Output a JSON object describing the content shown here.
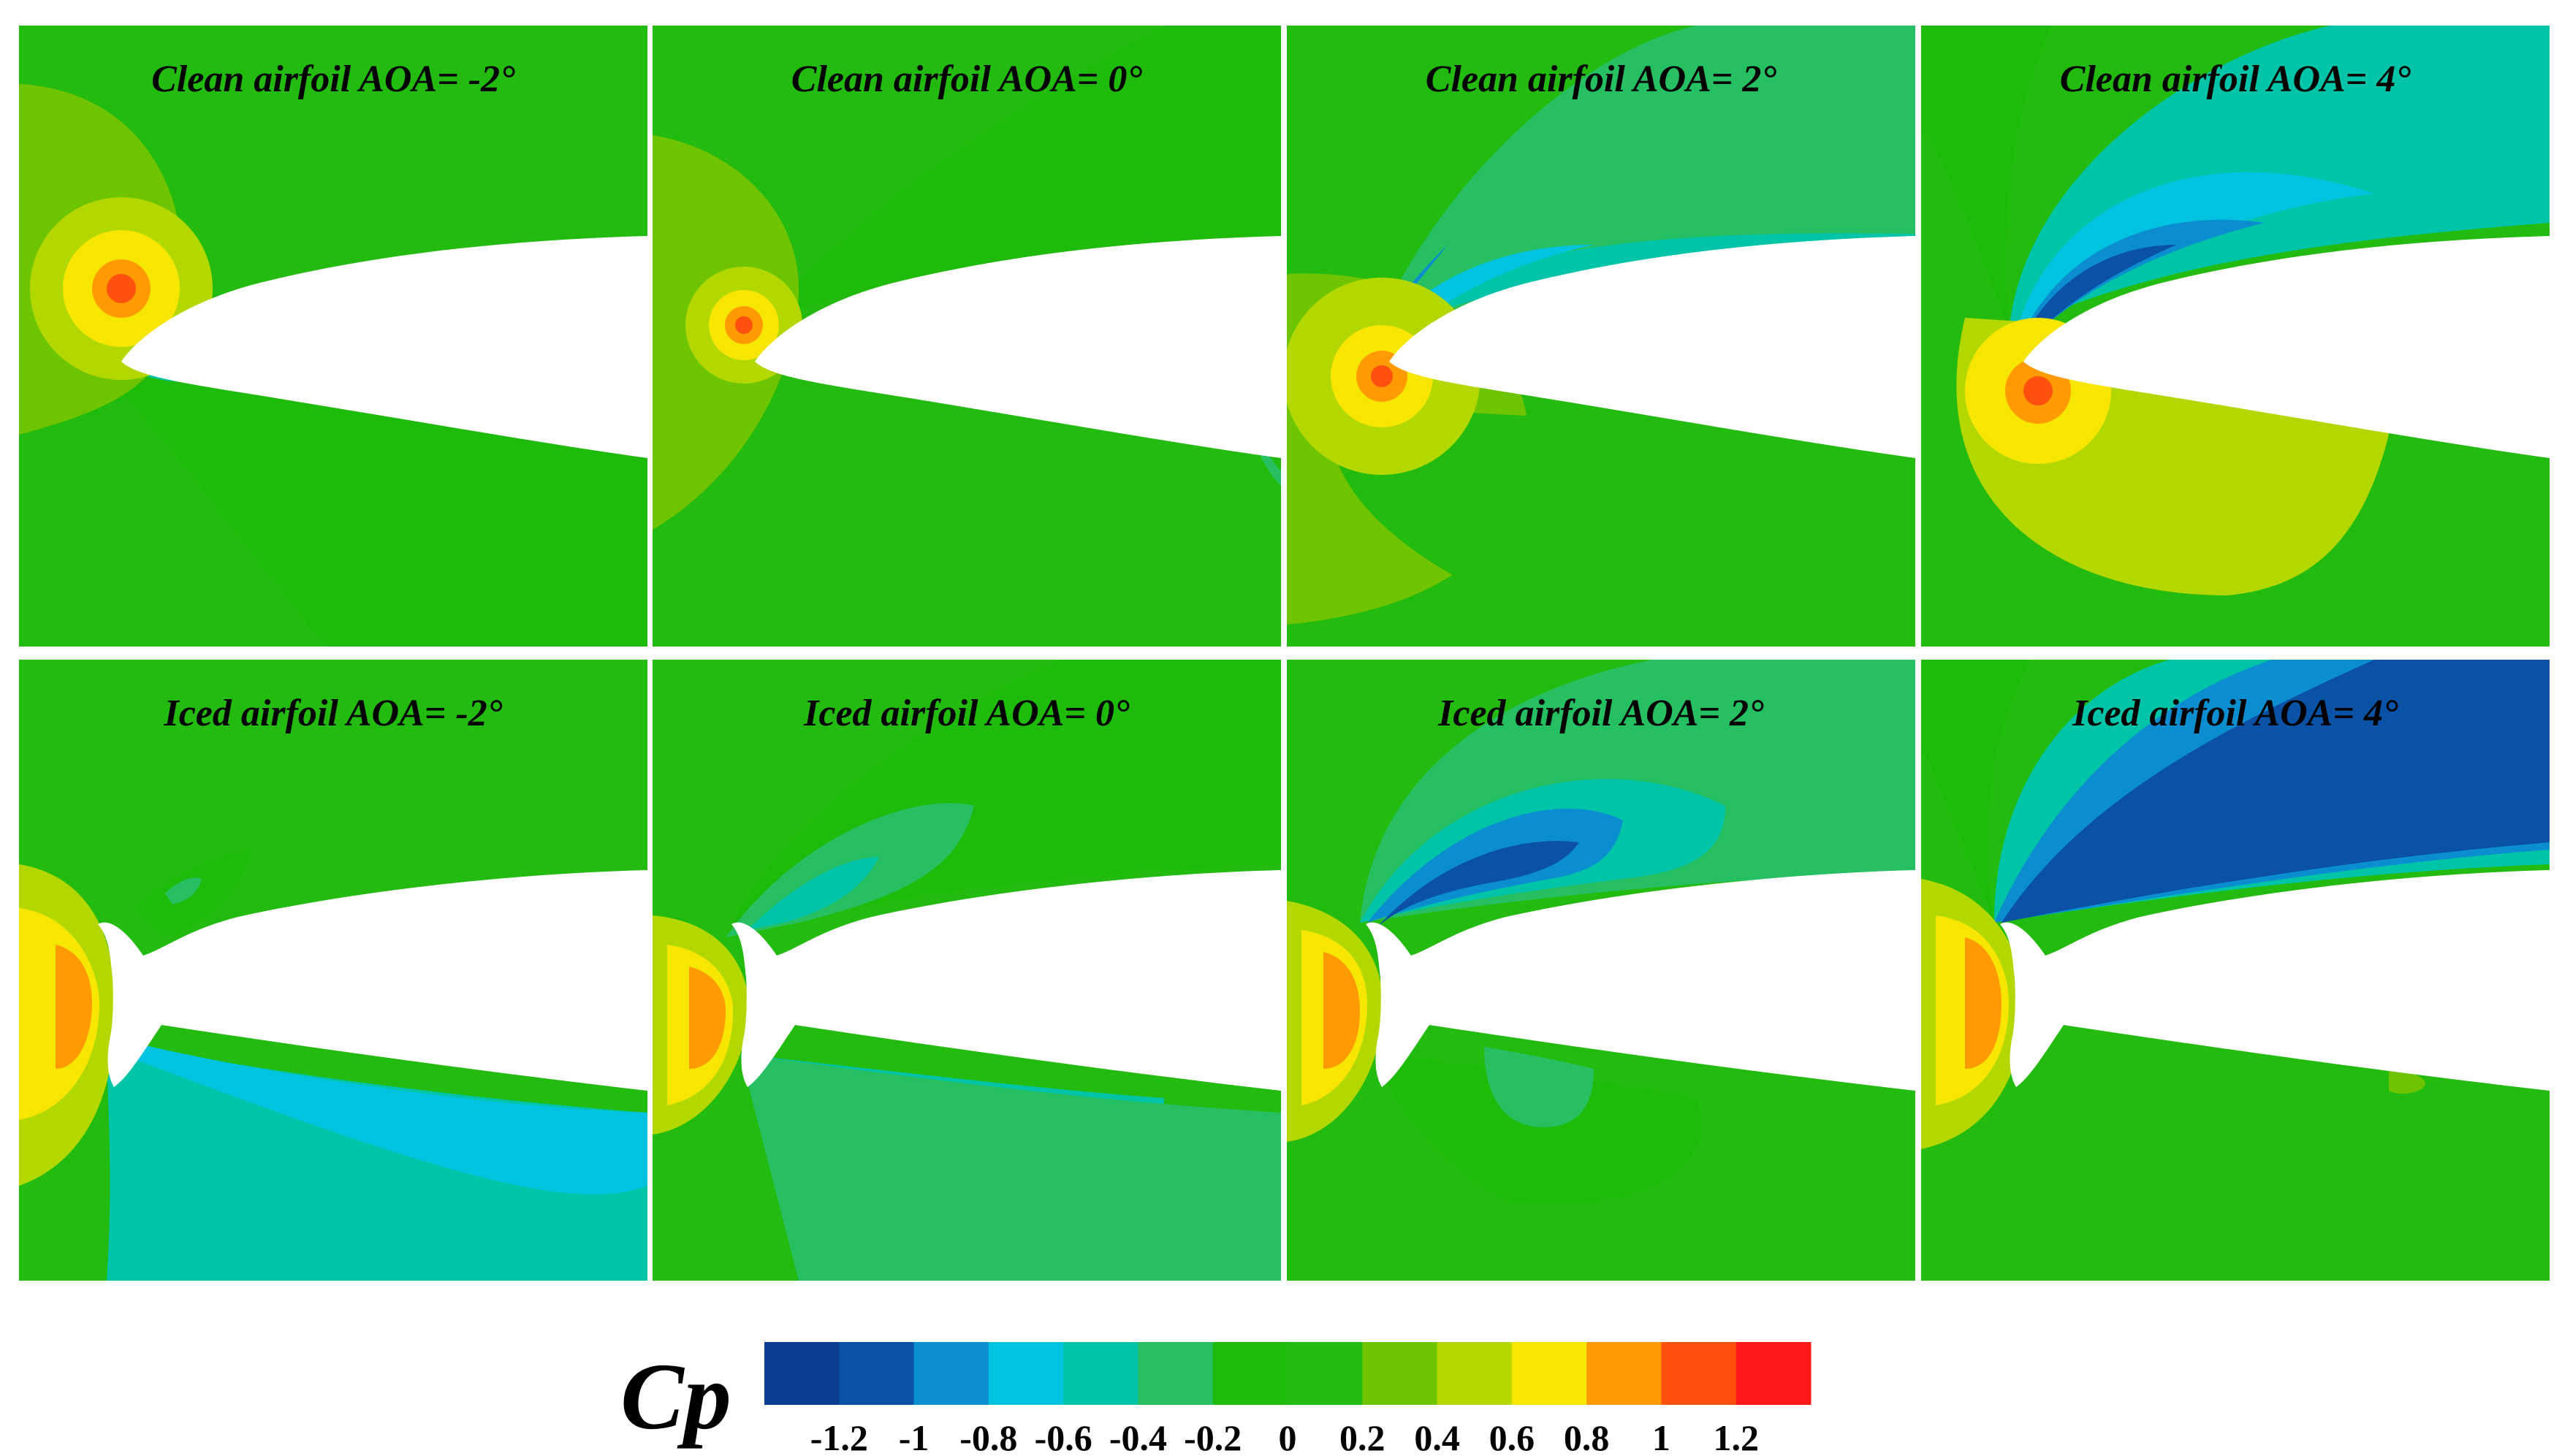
{
  "panels": [
    {
      "label": "Clean airfoil AOA= -2°",
      "body": "clean",
      "aoa": -2
    },
    {
      "label": "Clean airfoil AOA= 0°",
      "body": "clean",
      "aoa": 0
    },
    {
      "label": "Clean airfoil AOA= 2°",
      "body": "clean",
      "aoa": 2
    },
    {
      "label": "Clean airfoil AOA= 4°",
      "body": "clean",
      "aoa": 4
    },
    {
      "label": "Iced airfoil AOA= -2°",
      "body": "iced",
      "aoa": -2
    },
    {
      "label": "Iced airfoil AOA= 0°",
      "body": "iced",
      "aoa": 0
    },
    {
      "label": "Iced airfoil AOA= 2°",
      "body": "iced",
      "aoa": 2
    },
    {
      "label": "Iced airfoil AOA= 4°",
      "body": "iced",
      "aoa": 4
    }
  ],
  "colorbar": {
    "title": "Cp",
    "min": -1.4,
    "max": 1.4,
    "tick_labels": [
      "-1.2",
      "-1",
      "-0.8",
      "-0.6",
      "-0.4",
      "-0.2",
      "0",
      "0.2",
      "0.4",
      "0.6",
      "0.8",
      "1",
      "1.2"
    ],
    "tick_values": [
      -1.2,
      -1.0,
      -0.8,
      -0.6,
      -0.4,
      -0.2,
      0,
      0.2,
      0.4,
      0.6,
      0.8,
      1.0,
      1.2
    ],
    "colors": [
      "#0b3d91",
      "#0a52a6",
      "#0a8ed0",
      "#00c3e0",
      "#00c4a8",
      "#26bf62",
      "#1fbb0a",
      "#23bb0f",
      "#6fc400",
      "#b3d800",
      "#f7e600",
      "#ff9a00",
      "#ff5010",
      "#ff1a1a"
    ]
  }
}
